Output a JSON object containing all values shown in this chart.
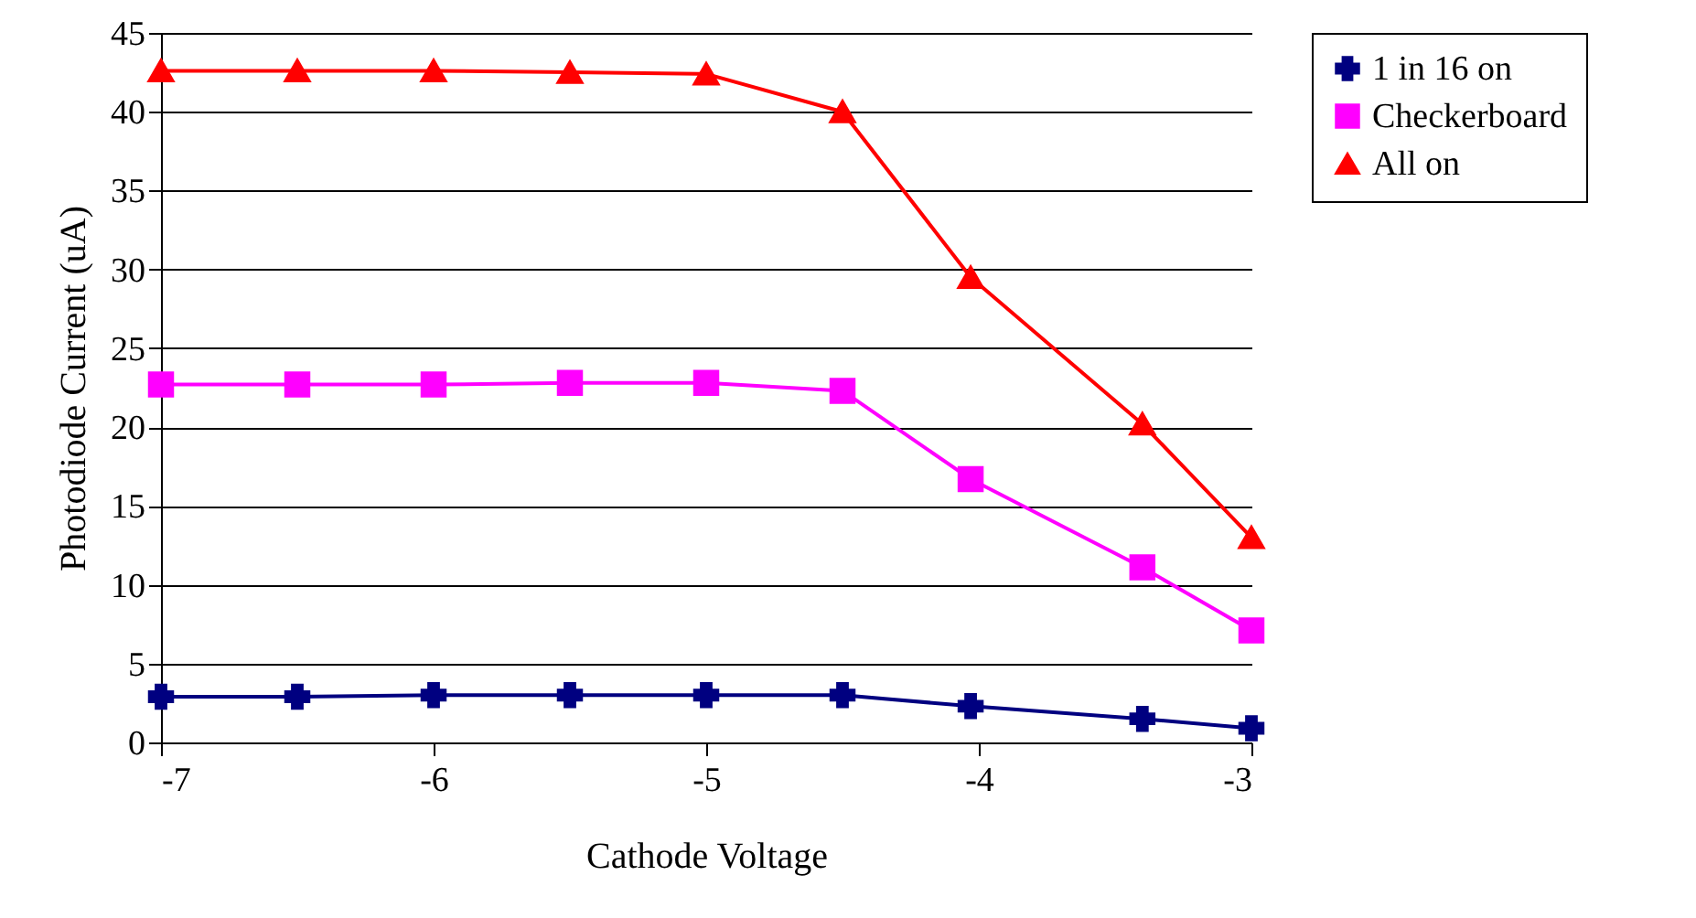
{
  "chart_data": {
    "type": "line",
    "xlabel": "Cathode Voltage",
    "ylabel": "Photodiode Current (uA)",
    "x": [
      -7,
      -6.5,
      -6,
      -5.5,
      -5,
      -4.5,
      -4.03,
      -3.4,
      -3
    ],
    "xlim": [
      -7,
      -3
    ],
    "xticks": [
      -7,
      -6,
      -5,
      -4,
      -3
    ],
    "ylim": [
      0,
      45
    ],
    "yticks": [
      0,
      5,
      10,
      15,
      20,
      25,
      30,
      35,
      40,
      45
    ],
    "grid": "y",
    "legend": "right",
    "series": [
      {
        "name": "1 in 16 on",
        "color": "#000080",
        "marker": "cross",
        "values": [
          2.9,
          2.9,
          3.0,
          3.0,
          3.0,
          3.0,
          2.3,
          1.5,
          0.9
        ]
      },
      {
        "name": "Checkerboard",
        "color": "#ff00ff",
        "marker": "square",
        "values": [
          22.7,
          22.7,
          22.7,
          22.8,
          22.8,
          22.3,
          16.7,
          11.1,
          7.1
        ]
      },
      {
        "name": "All on",
        "color": "#ff0000",
        "marker": "triangle",
        "values": [
          42.6,
          42.6,
          42.6,
          42.5,
          42.4,
          40.0,
          29.5,
          20.2,
          13.0
        ]
      }
    ]
  }
}
